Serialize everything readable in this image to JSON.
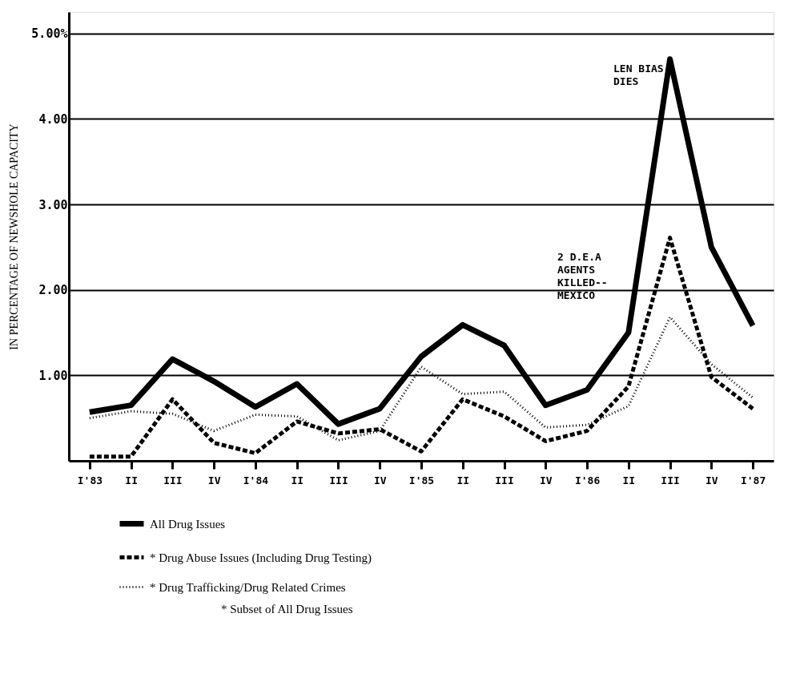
{
  "chart_data": {
    "type": "line",
    "ylabel": "IN PERCENTAGE OF NEWSHOLE CAPACITY",
    "categories": [
      "I'83",
      "II",
      "III",
      "IV",
      "I'84",
      "II",
      "III",
      "IV",
      "I'85",
      "II",
      "III",
      "IV",
      "I'86",
      "II",
      "III",
      "IV",
      "I'87"
    ],
    "series": [
      {
        "name": "All Drug Issues",
        "color": "#000000",
        "line_style": "solid",
        "values": [
          0.57,
          0.65,
          1.19,
          0.93,
          0.63,
          0.9,
          0.43,
          0.61,
          1.22,
          1.59,
          1.35,
          0.65,
          0.83,
          1.5,
          4.7,
          2.5,
          1.58
        ]
      },
      {
        "name": "* Drug Abuse Issues (Including Drug Testing)",
        "color": "#000000",
        "line_style": "dashed",
        "values": [
          0.05,
          0.05,
          0.72,
          0.21,
          0.09,
          0.46,
          0.32,
          0.37,
          0.11,
          0.72,
          0.52,
          0.23,
          0.35,
          0.87,
          2.61,
          0.98,
          0.61
        ]
      },
      {
        "name": "* Drug Trafficking/Drug Related Crimes",
        "color": "#000000",
        "line_style": "dotted",
        "values": [
          0.5,
          0.58,
          0.55,
          0.35,
          0.54,
          0.52,
          0.24,
          0.35,
          1.1,
          0.78,
          0.81,
          0.39,
          0.42,
          0.64,
          1.68,
          1.13,
          0.74
        ]
      }
    ],
    "ylim": [
      0,
      5.25
    ],
    "yticks": [
      {
        "value": 1,
        "label": "1.00"
      },
      {
        "value": 2,
        "label": "2.00"
      },
      {
        "value": 3,
        "label": "3.00"
      },
      {
        "value": 4,
        "label": "4.00"
      },
      {
        "value": 5,
        "label": "5.00%"
      }
    ],
    "grid": "y",
    "legend": "bottom left",
    "annotations": [
      "2 D.E.A\nAGENTS\nKILLED--\nMEXICO",
      "LEN BIAS\nDIES",
      "* Subset of All Drug Issues"
    ]
  }
}
